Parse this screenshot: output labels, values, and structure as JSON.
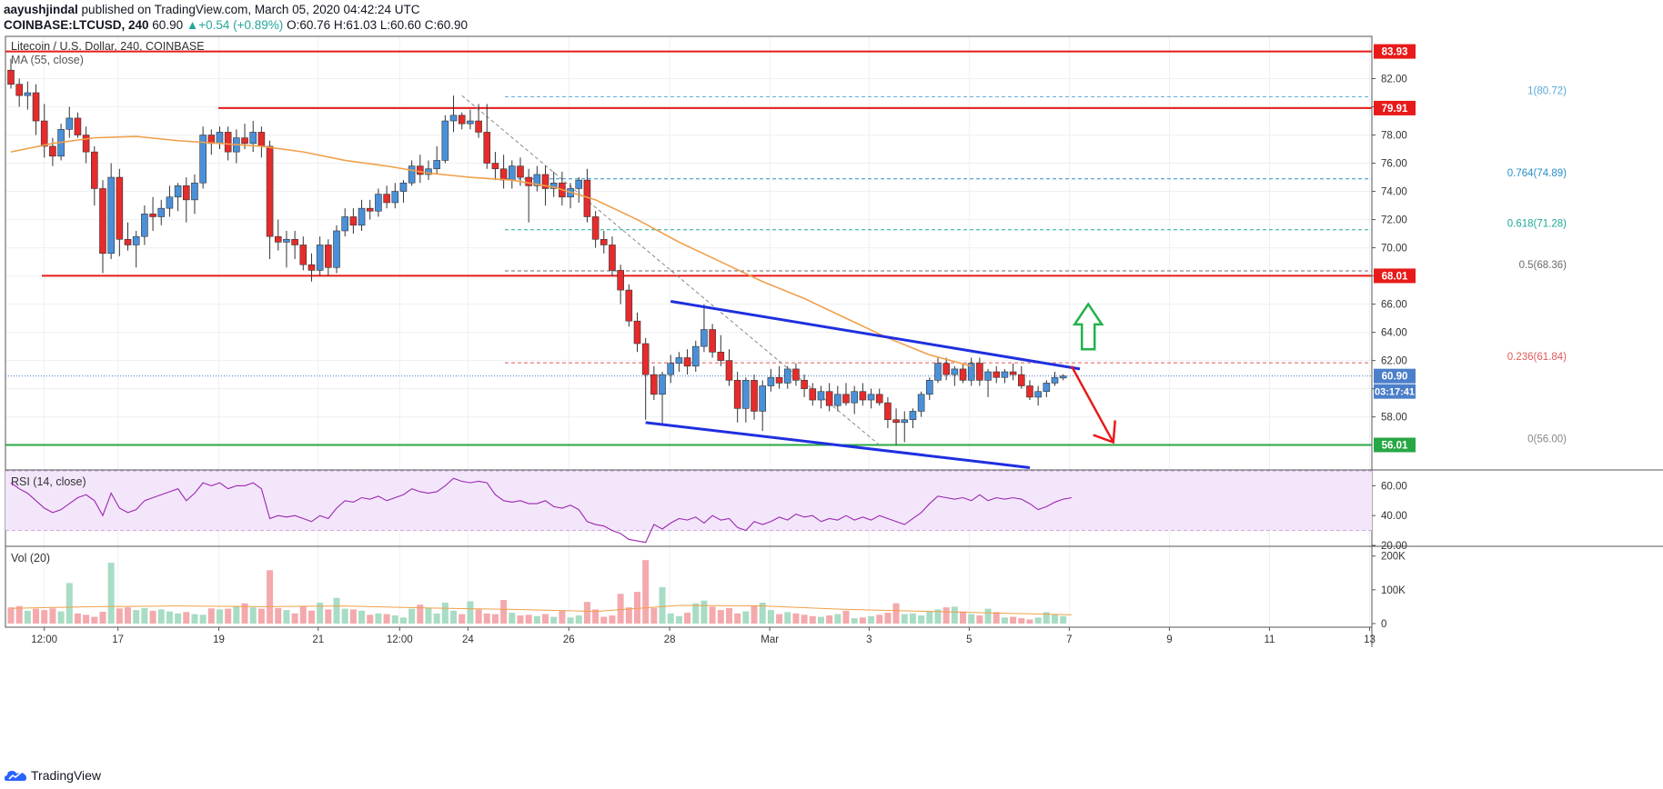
{
  "header": {
    "author": "aayushjindal",
    "published_text": "published on TradingView.com, March 05, 2020 04:42:24 UTC",
    "symbol": "COINBASE:LTCUSD, 240",
    "last": "60.90",
    "change": "+0.54 (+0.89%)",
    "ohlc": "O:60.76 H:61.03 L:60.60 C:60.90"
  },
  "footer": {
    "brand": "TradingView",
    "logo": "tradingview-cloud-logo"
  },
  "chart_data": [
    {
      "type": "candlestick",
      "title": "Litecoin / U.S. Dollar, 240, COINBASE",
      "ma_label": "MA (55, close)",
      "ylim": [
        54.3,
        85.0
      ],
      "y_ticks": [
        58,
        60,
        62,
        64,
        66,
        68,
        70,
        72,
        74,
        76,
        78,
        80,
        82
      ],
      "y_tick_labels": [
        "58.00",
        "60.00",
        "62.00",
        "64.00",
        "66.00",
        "68.00",
        "70.00",
        "72.00",
        "74.00",
        "76.00",
        "78.00",
        "80.00",
        "82.00"
      ],
      "x_tick_labels": [
        "12:00",
        "17",
        "19",
        "21",
        "12:00",
        "24",
        "26",
        "28",
        "Mar",
        "3",
        "5",
        "7",
        "9",
        "11",
        "13"
      ],
      "candles": [
        [
          82.6,
          83.4,
          81.3,
          81.6
        ],
        [
          81.6,
          82.0,
          80.0,
          80.8
        ],
        [
          80.8,
          81.8,
          79.8,
          81.0
        ],
        [
          81.0,
          81.6,
          78.0,
          79.0
        ],
        [
          79.0,
          80.2,
          76.4,
          77.2
        ],
        [
          77.2,
          77.8,
          75.8,
          76.5
        ],
        [
          76.5,
          78.8,
          76.2,
          78.4
        ],
        [
          78.4,
          80.0,
          77.8,
          79.2
        ],
        [
          79.2,
          79.6,
          77.8,
          78.0
        ],
        [
          78.0,
          78.6,
          76.0,
          76.8
        ],
        [
          76.8,
          77.2,
          73.0,
          74.2
        ],
        [
          74.2,
          74.8,
          68.2,
          69.6
        ],
        [
          69.6,
          76.0,
          69.2,
          75.0
        ],
        [
          75.0,
          75.6,
          69.4,
          70.6
        ],
        [
          70.6,
          71.8,
          69.8,
          70.2
        ],
        [
          70.2,
          71.2,
          68.6,
          70.8
        ],
        [
          70.8,
          73.0,
          70.2,
          72.4
        ],
        [
          72.4,
          73.6,
          71.2,
          72.2
        ],
        [
          72.2,
          73.4,
          71.6,
          72.8
        ],
        [
          72.8,
          74.4,
          72.2,
          73.6
        ],
        [
          73.6,
          74.6,
          72.6,
          74.4
        ],
        [
          74.4,
          75.0,
          71.8,
          73.4
        ],
        [
          73.4,
          75.2,
          72.4,
          74.6
        ],
        [
          74.6,
          78.6,
          74.2,
          78.0
        ],
        [
          78.0,
          78.4,
          76.6,
          77.4
        ],
        [
          77.4,
          78.6,
          77.0,
          78.2
        ],
        [
          78.2,
          78.6,
          76.2,
          76.8
        ],
        [
          76.8,
          78.4,
          76.0,
          77.8
        ],
        [
          77.8,
          78.8,
          77.0,
          77.4
        ],
        [
          77.4,
          79.0,
          76.8,
          78.2
        ],
        [
          78.2,
          78.6,
          76.4,
          77.2
        ],
        [
          77.2,
          77.6,
          69.2,
          70.8
        ],
        [
          70.8,
          72.0,
          69.8,
          70.4
        ],
        [
          70.4,
          71.2,
          68.6,
          70.6
        ],
        [
          70.6,
          71.2,
          69.2,
          70.2
        ],
        [
          70.2,
          70.8,
          68.4,
          68.8
        ],
        [
          68.8,
          69.6,
          67.6,
          68.4
        ],
        [
          68.4,
          70.8,
          68.0,
          70.2
        ],
        [
          70.2,
          70.6,
          68.0,
          68.6
        ],
        [
          68.6,
          71.6,
          68.2,
          71.2
        ],
        [
          71.2,
          72.8,
          70.8,
          72.2
        ],
        [
          72.2,
          72.8,
          71.0,
          71.6
        ],
        [
          71.6,
          73.4,
          71.2,
          72.8
        ],
        [
          72.8,
          73.4,
          72.0,
          72.6
        ],
        [
          72.6,
          74.2,
          72.2,
          73.8
        ],
        [
          73.8,
          74.4,
          72.8,
          73.2
        ],
        [
          73.2,
          74.6,
          72.8,
          74.0
        ],
        [
          74.0,
          74.8,
          73.2,
          74.6
        ],
        [
          74.6,
          76.2,
          74.4,
          75.8
        ],
        [
          75.8,
          76.6,
          74.6,
          75.2
        ],
        [
          75.2,
          76.2,
          74.8,
          75.6
        ],
        [
          75.6,
          77.2,
          75.2,
          76.2
        ],
        [
          76.2,
          79.4,
          76.0,
          79.0
        ],
        [
          79.0,
          80.8,
          78.2,
          79.4
        ],
        [
          79.4,
          79.6,
          78.4,
          78.8
        ],
        [
          78.8,
          79.8,
          78.4,
          79.0
        ],
        [
          79.0,
          80.2,
          77.8,
          78.2
        ],
        [
          78.2,
          80.2,
          75.6,
          76.0
        ],
        [
          76.0,
          76.8,
          74.8,
          75.6
        ],
        [
          75.6,
          76.6,
          74.2,
          74.8
        ],
        [
          74.8,
          76.2,
          74.2,
          75.8
        ],
        [
          75.8,
          76.4,
          74.4,
          75.0
        ],
        [
          75.0,
          75.6,
          71.8,
          74.4
        ],
        [
          74.4,
          75.8,
          74.0,
          75.2
        ],
        [
          75.2,
          75.8,
          73.0,
          74.2
        ],
        [
          74.2,
          75.4,
          73.6,
          74.6
        ],
        [
          74.6,
          75.4,
          73.0,
          73.6
        ],
        [
          73.6,
          74.6,
          72.8,
          74.2
        ],
        [
          74.2,
          75.0,
          73.2,
          74.8
        ],
        [
          74.8,
          75.6,
          71.8,
          72.2
        ],
        [
          72.2,
          72.6,
          70.0,
          70.6
        ],
        [
          70.6,
          71.2,
          69.6,
          70.2
        ],
        [
          70.2,
          70.8,
          68.0,
          68.4
        ],
        [
          68.4,
          68.8,
          66.0,
          67.0
        ],
        [
          67.0,
          67.4,
          64.4,
          64.8
        ],
        [
          64.8,
          65.4,
          62.6,
          63.2
        ],
        [
          63.2,
          63.6,
          57.8,
          61.0
        ],
        [
          61.0,
          61.6,
          59.2,
          59.6
        ],
        [
          59.6,
          61.2,
          57.4,
          61.0
        ],
        [
          61.0,
          62.4,
          60.4,
          61.8
        ],
        [
          61.8,
          62.6,
          61.2,
          62.2
        ],
        [
          62.2,
          62.8,
          61.0,
          61.6
        ],
        [
          61.6,
          63.4,
          61.2,
          63.0
        ],
        [
          63.0,
          66.0,
          62.6,
          64.2
        ],
        [
          64.2,
          64.6,
          62.2,
          62.6
        ],
        [
          62.6,
          63.8,
          61.6,
          62.0
        ],
        [
          62.0,
          62.8,
          60.2,
          60.6
        ],
        [
          60.6,
          61.2,
          57.6,
          58.6
        ],
        [
          58.6,
          60.8,
          57.6,
          60.6
        ],
        [
          60.6,
          61.0,
          57.8,
          58.4
        ],
        [
          58.4,
          60.6,
          57.0,
          60.2
        ],
        [
          60.2,
          61.4,
          59.8,
          60.8
        ],
        [
          60.8,
          61.6,
          60.0,
          60.4
        ],
        [
          60.4,
          61.6,
          60.0,
          61.4
        ],
        [
          61.4,
          61.8,
          60.2,
          60.6
        ],
        [
          60.6,
          61.0,
          59.4,
          60.0
        ],
        [
          60.0,
          60.4,
          58.8,
          59.2
        ],
        [
          59.2,
          60.2,
          58.6,
          59.8
        ],
        [
          59.8,
          60.4,
          58.4,
          58.8
        ],
        [
          58.8,
          60.2,
          58.4,
          59.6
        ],
        [
          59.6,
          60.4,
          58.8,
          59.0
        ],
        [
          59.0,
          60.2,
          58.2,
          59.8
        ],
        [
          59.8,
          60.4,
          58.8,
          59.2
        ],
        [
          59.2,
          60.0,
          58.6,
          59.6
        ],
        [
          59.6,
          60.0,
          58.8,
          59.0
        ],
        [
          59.0,
          59.4,
          57.2,
          57.8
        ],
        [
          57.8,
          58.6,
          56.0,
          57.6
        ],
        [
          57.6,
          58.4,
          56.2,
          57.8
        ],
        [
          57.8,
          58.6,
          57.2,
          58.4
        ],
        [
          58.4,
          59.8,
          58.0,
          59.6
        ],
        [
          59.6,
          60.8,
          59.2,
          60.6
        ],
        [
          60.6,
          62.2,
          60.4,
          61.8
        ],
        [
          61.8,
          62.2,
          60.6,
          61.0
        ],
        [
          61.0,
          61.6,
          60.2,
          61.4
        ],
        [
          61.4,
          61.8,
          60.4,
          60.6
        ],
        [
          60.6,
          62.2,
          60.2,
          61.8
        ],
        [
          61.8,
          62.2,
          60.2,
          60.6
        ],
        [
          60.6,
          61.4,
          59.4,
          61.2
        ],
        [
          61.2,
          61.6,
          60.4,
          60.8
        ],
        [
          60.8,
          61.4,
          60.4,
          61.2
        ],
        [
          61.2,
          61.8,
          60.6,
          61.0
        ],
        [
          61.0,
          61.6,
          60.0,
          60.2
        ],
        [
          60.2,
          60.6,
          59.2,
          59.4
        ],
        [
          59.4,
          60.2,
          58.8,
          59.8
        ],
        [
          59.8,
          60.6,
          59.4,
          60.4
        ],
        [
          60.4,
          61.2,
          60.2,
          60.8
        ],
        [
          60.76,
          61.03,
          60.6,
          60.9
        ]
      ],
      "ma_55": [
        [
          0,
          76.8
        ],
        [
          5,
          77.4
        ],
        [
          10,
          77.8
        ],
        [
          15,
          77.9
        ],
        [
          20,
          77.6
        ],
        [
          25,
          77.4
        ],
        [
          30,
          77.2
        ],
        [
          35,
          76.8
        ],
        [
          40,
          76.2
        ],
        [
          45,
          75.8
        ],
        [
          50,
          75.3
        ],
        [
          55,
          75.0
        ],
        [
          60,
          74.8
        ],
        [
          65,
          74.3
        ],
        [
          70,
          73.4
        ],
        [
          75,
          72.0
        ],
        [
          80,
          70.4
        ],
        [
          85,
          69.0
        ],
        [
          90,
          67.6
        ],
        [
          95,
          66.4
        ],
        [
          100,
          65.0
        ],
        [
          105,
          63.6
        ],
        [
          110,
          62.4
        ],
        [
          115,
          61.6
        ]
      ],
      "price_lines": [
        {
          "value": 83.93,
          "label": "83.93",
          "color": "#e81a1a"
        },
        {
          "value": 79.91,
          "label": "79.91",
          "color": "#e81a1a"
        },
        {
          "value": 68.01,
          "label": "68.01",
          "color": "#e81a1a"
        },
        {
          "value": 56.01,
          "label": "56.01",
          "color": "#28a745"
        }
      ],
      "fib_levels": [
        {
          "value": 80.72,
          "label": "1(80.72)",
          "color": "#5aa8d6"
        },
        {
          "value": 74.89,
          "label": "0.764(74.89)",
          "color": "#2a8fc7"
        },
        {
          "value": 71.28,
          "label": "0.618(71.28)",
          "color": "#1fa898"
        },
        {
          "value": 68.36,
          "label": "0.5(68.36)",
          "color": "#6b6b6b"
        },
        {
          "value": 61.84,
          "label": "0.236(61.84)",
          "color": "#e05a5a"
        },
        {
          "value": 56.0,
          "label": "0(56.00)",
          "color": "#888888"
        }
      ],
      "last_price": {
        "value": 60.9,
        "label": "60.90",
        "countdown": "03:17:41"
      },
      "channel": {
        "upper": [
          [
            79,
            66.2
          ],
          [
            128,
            61.4
          ]
        ],
        "lower": [
          [
            76,
            57.6
          ],
          [
            122,
            54.4
          ]
        ]
      },
      "dashed_trend": [
        [
          54,
          80.8
        ],
        [
          104,
          56.0
        ]
      ],
      "arrows": {
        "up": {
          "x": 129,
          "from": 62.8,
          "to": 66.0
        },
        "down": {
          "x_from": 127,
          "x_to": 132,
          "from": 61.6,
          "to": 56.2
        }
      }
    },
    {
      "type": "line",
      "title": "RSI (14, close)",
      "ylim": [
        20,
        70
      ],
      "y_ticks": [
        20,
        40,
        60
      ],
      "y_tick_labels": [
        "20.00",
        "40.00",
        "60.00"
      ],
      "band": [
        30,
        70
      ],
      "values": [
        62,
        58,
        55,
        50,
        45,
        42,
        44,
        48,
        52,
        54,
        50,
        40,
        55,
        45,
        42,
        44,
        50,
        52,
        54,
        56,
        58,
        50,
        55,
        62,
        60,
        62,
        58,
        60,
        60,
        62,
        58,
        38,
        40,
        39,
        40,
        38,
        36,
        40,
        38,
        45,
        50,
        49,
        52,
        51,
        53,
        50,
        52,
        54,
        58,
        56,
        55,
        56,
        60,
        65,
        63,
        62,
        63,
        62,
        54,
        50,
        49,
        50,
        48,
        48,
        50,
        46,
        45,
        47,
        44,
        36,
        34,
        33,
        30,
        28,
        24,
        23,
        22,
        34,
        31,
        35,
        38,
        37,
        39,
        35,
        40,
        37,
        38,
        32,
        30,
        36,
        34,
        36,
        39,
        37,
        41,
        39,
        40,
        36,
        38,
        37,
        40,
        37,
        39,
        37,
        40,
        38,
        36,
        34,
        38,
        42,
        48,
        53,
        52,
        51,
        52,
        50,
        54,
        50,
        52,
        51,
        52,
        51,
        48,
        44,
        46,
        49,
        51,
        52
      ]
    },
    {
      "type": "bar",
      "title": "Vol (20)",
      "ylim": [
        0,
        210000
      ],
      "y_ticks": [
        0,
        100000,
        200000
      ],
      "y_tick_labels": [
        "0",
        "100K",
        "200K"
      ],
      "values": [
        48000,
        52000,
        38000,
        44000,
        40000,
        45000,
        36000,
        120000,
        30000,
        26000,
        20000,
        35000,
        180000,
        45000,
        48000,
        40000,
        46000,
        38000,
        42000,
        36000,
        30000,
        34000,
        28000,
        26000,
        45000,
        42000,
        44000,
        52000,
        60000,
        48000,
        44000,
        158000,
        46000,
        40000,
        30000,
        52000,
        38000,
        62000,
        42000,
        76000,
        44000,
        42000,
        38000,
        26000,
        30000,
        28000,
        24000,
        18000,
        44000,
        56000,
        46000,
        30000,
        62000,
        38000,
        28000,
        66000,
        42000,
        30000,
        28000,
        70000,
        32000,
        24000,
        26000,
        22000,
        28000,
        20000,
        38000,
        18000,
        24000,
        64000,
        42000,
        20000,
        24000,
        88000,
        48000,
        94000,
        188000,
        46000,
        108000,
        30000,
        22000,
        32000,
        60000,
        68000,
        50000,
        40000,
        46000,
        30000,
        36000,
        54000,
        62000,
        40000,
        28000,
        34000,
        30000,
        26000,
        22000,
        20000,
        24000,
        28000,
        38000,
        16000,
        18000,
        22000,
        26000,
        32000,
        60000,
        28000,
        30000,
        24000,
        36000,
        42000,
        48000,
        50000,
        36000,
        28000,
        24000,
        44000,
        34000,
        18000,
        20000,
        16000,
        12000,
        18000,
        34000,
        26000,
        22000,
        20000
      ],
      "ma_20": [
        [
          0,
          45000
        ],
        [
          10,
          50000
        ],
        [
          20,
          52000
        ],
        [
          30,
          50000
        ],
        [
          40,
          52000
        ],
        [
          50,
          46000
        ],
        [
          60,
          42000
        ],
        [
          70,
          36000
        ],
        [
          80,
          54000
        ],
        [
          90,
          52000
        ],
        [
          100,
          42000
        ],
        [
          110,
          36000
        ],
        [
          120,
          30000
        ],
        [
          127,
          26000
        ]
      ]
    }
  ]
}
